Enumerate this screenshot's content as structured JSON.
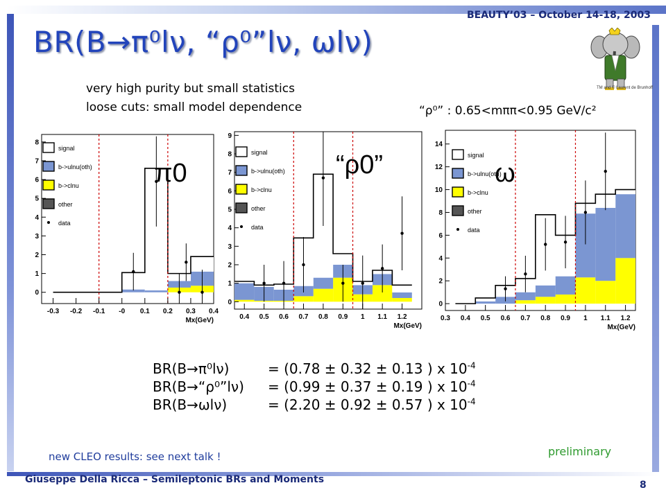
{
  "header": {
    "conference": "BEAUTY’03 – October 14-18, 2003"
  },
  "title": {
    "main": "BR(B→π⁰lν, “ρ⁰”lν, ωlν)"
  },
  "notes": {
    "line1": "very high purity but small statistics",
    "line2": "loose cuts: small model dependence",
    "rho_window": "“ρ⁰” : 0.65<mππ<0.95 GeV/c²"
  },
  "mascot": {
    "caption": "TM and © Laurent de Brunhoff"
  },
  "results": [
    {
      "label": "BR(B→π⁰lν)",
      "value": "= (0.78 ± 0.32 ± 0.13 ) x 10",
      "exp": "-4"
    },
    {
      "label": "BR(B→“ρ⁰”lν)",
      "value": "= (0.99 ± 0.37 ± 0.19 ) x 10",
      "exp": "-4"
    },
    {
      "label": "BR(B→ωlν)",
      "value": "= (2.20 ± 0.92 ± 0.57 ) x 10",
      "exp": "-4"
    }
  ],
  "footnote": "new CLEO results: see next talk !",
  "preliminary": "preliminary",
  "footer": {
    "author": "Giuseppe Della Ricca – Semileptonic BRs and Moments",
    "page": "8"
  },
  "colors": {
    "signal": "#ffffff",
    "bulnu": "#7b96d2",
    "bclnu": "#ffff00",
    "other": "#555555",
    "cut": "#cc0000",
    "title": "#2244bb",
    "frame": "#3d55b8"
  },
  "chart_data": [
    {
      "type": "bar",
      "panel_label": "π0",
      "xlabel": "Mx(GeV)",
      "xlim": [
        -0.35,
        0.4
      ],
      "ylim": [
        -0.6,
        8.4
      ],
      "xticks": [
        "-0.3",
        "-0.2",
        "-0.1",
        "-0",
        "0.1",
        "0.2",
        "0.3",
        "0.4"
      ],
      "xtick_values": [
        -0.3,
        -0.2,
        -0.1,
        0,
        0.1,
        0.2,
        0.3,
        0.4
      ],
      "yticks": [
        0,
        1,
        2,
        3,
        4,
        5,
        6,
        7,
        8
      ],
      "bin_edges": [
        -0.3,
        -0.2,
        -0.1,
        0.0,
        0.1,
        0.2,
        0.3,
        0.4
      ],
      "cuts": [
        -0.1,
        0.2
      ],
      "series": [
        {
          "name": "other",
          "values": [
            0,
            0,
            0,
            0,
            0,
            0,
            0
          ]
        },
        {
          "name": "b->clnu",
          "values": [
            0,
            0,
            0,
            0,
            0,
            0.25,
            0.35
          ]
        },
        {
          "name": "b->ulnu(oth)",
          "values": [
            0,
            0,
            0,
            0.15,
            0.1,
            0.35,
            0.75
          ]
        },
        {
          "name": "signal",
          "values": [
            0,
            0,
            0,
            0.9,
            6.5,
            0.4,
            0.8
          ]
        }
      ],
      "data": [
        {
          "x": 0.05,
          "y": 1.1,
          "err": 1.0
        },
        {
          "x": 0.15,
          "y": 5.9,
          "err": 2.4
        },
        {
          "x": 0.25,
          "y": 0.0,
          "err": 1.0
        },
        {
          "x": 0.35,
          "y": 0.0,
          "err": 1.2
        },
        {
          "x": 0.28,
          "y": 1.6,
          "err": 1.0
        }
      ],
      "legend": [
        "signal",
        "b->ulnu(oth)",
        "b->clnu",
        "other",
        "data"
      ]
    },
    {
      "type": "bar",
      "panel_label": "“ρ0”",
      "xlabel": "Mx(GeV)",
      "xlim": [
        0.35,
        1.3
      ],
      "ylim": [
        -0.4,
        9.2
      ],
      "xticks": [
        "0.4",
        "0.5",
        "0.6",
        "0.7",
        "0.8",
        "0.9",
        "1",
        "1.1",
        "1.2"
      ],
      "xtick_values": [
        0.4,
        0.5,
        0.6,
        0.7,
        0.8,
        0.9,
        1.0,
        1.1,
        1.2
      ],
      "yticks": [
        0,
        1,
        2,
        3,
        4,
        5,
        6,
        7,
        8,
        9
      ],
      "bin_edges": [
        0.35,
        0.45,
        0.55,
        0.65,
        0.75,
        0.85,
        0.95,
        1.05,
        1.15,
        1.25
      ],
      "cuts": [
        0.65,
        0.95
      ],
      "series": [
        {
          "name": "other",
          "values": [
            0,
            0,
            0,
            0,
            0,
            0,
            0,
            0,
            0
          ]
        },
        {
          "name": "b->clnu",
          "values": [
            0.1,
            0.05,
            0.05,
            0.3,
            0.7,
            1.3,
            0.4,
            0.9,
            0.2
          ]
        },
        {
          "name": "b->ulnu(oth)",
          "values": [
            0.9,
            0.75,
            0.6,
            0.55,
            0.6,
            0.7,
            0.5,
            0.6,
            0.3
          ]
        },
        {
          "name": "signal",
          "values": [
            0.1,
            0.1,
            0.3,
            2.6,
            5.6,
            0.6,
            0.2,
            0.2,
            0.4
          ]
        }
      ],
      "data": [
        {
          "x": 0.5,
          "y": 1.0,
          "err": 1.0
        },
        {
          "x": 0.6,
          "y": 1.0,
          "err": 1.2
        },
        {
          "x": 0.7,
          "y": 2.0,
          "err": 1.5
        },
        {
          "x": 0.8,
          "y": 6.7,
          "err": 2.6
        },
        {
          "x": 0.9,
          "y": 1.0,
          "err": 1.0
        },
        {
          "x": 1.0,
          "y": 1.0,
          "err": 1.5
        },
        {
          "x": 1.1,
          "y": 1.8,
          "err": 1.3
        },
        {
          "x": 1.2,
          "y": 3.7,
          "err": 2.0
        }
      ],
      "legend": [
        "signal",
        "b->ulnu(oth)",
        "b->clnu",
        "other",
        "data"
      ]
    },
    {
      "type": "bar",
      "panel_label": "ω",
      "xlabel": "Mx(GeV)",
      "xlim": [
        0.3,
        1.25
      ],
      "ylim": [
        -0.6,
        15.2
      ],
      "xticks": [
        "0.3",
        "0.4",
        "0.5",
        "0.6",
        "0.7",
        "0.8",
        "0.9",
        "1",
        "1.1",
        "1.2"
      ],
      "xtick_values": [
        0.3,
        0.4,
        0.5,
        0.6,
        0.7,
        0.8,
        0.9,
        1.0,
        1.1,
        1.2
      ],
      "yticks": [
        0,
        2,
        4,
        6,
        8,
        10,
        12,
        14
      ],
      "bin_edges": [
        0.35,
        0.45,
        0.55,
        0.65,
        0.75,
        0.85,
        0.95,
        1.05,
        1.15,
        1.25
      ],
      "cuts": [
        0.65,
        0.95
      ],
      "series": [
        {
          "name": "other",
          "values": [
            0,
            0,
            0,
            0,
            0,
            0,
            0,
            0,
            0
          ]
        },
        {
          "name": "b->clnu",
          "values": [
            0,
            0,
            0,
            0.3,
            0.6,
            0.8,
            2.3,
            2.0,
            4.0
          ]
        },
        {
          "name": "b->ulnu(oth)",
          "values": [
            0,
            0.2,
            0.6,
            0.7,
            1.0,
            1.6,
            5.6,
            6.4,
            5.6
          ]
        },
        {
          "name": "signal",
          "values": [
            0,
            0.3,
            1.0,
            1.2,
            6.2,
            3.6,
            0.9,
            1.2,
            0.4
          ]
        }
      ],
      "data": [
        {
          "x": 0.7,
          "y": 2.6,
          "err": 1.6
        },
        {
          "x": 0.8,
          "y": 5.2,
          "err": 2.3
        },
        {
          "x": 0.9,
          "y": 5.4,
          "err": 2.3
        },
        {
          "x": 1.0,
          "y": 8.0,
          "err": 2.8
        },
        {
          "x": 1.1,
          "y": 11.6,
          "err": 3.4
        },
        {
          "x": 0.6,
          "y": 1.3,
          "err": 1.1
        }
      ],
      "legend": [
        "signal",
        "b->ulnu(oth)",
        "b->clnu",
        "other",
        "data"
      ]
    }
  ]
}
